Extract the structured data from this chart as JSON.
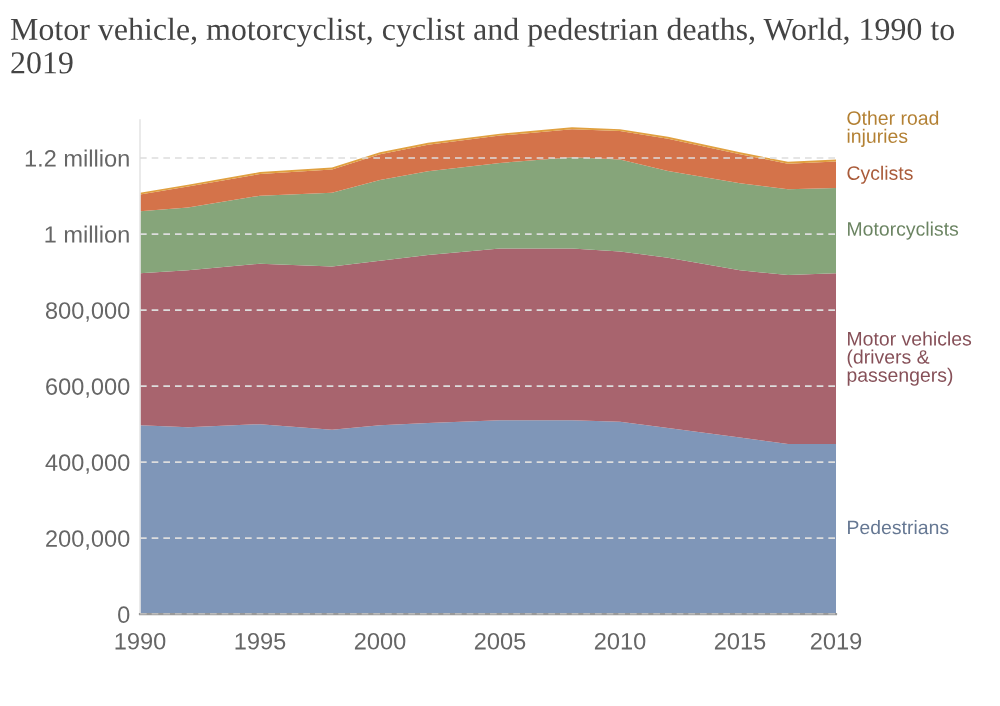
{
  "chart_data": {
    "type": "area",
    "stacked": true,
    "title": "Motor vehicle, motorcyclist, cyclist and pedestrian deaths, World, 1990 to 2019",
    "x": [
      1990,
      1992,
      1995,
      1998,
      2000,
      2002,
      2005,
      2008,
      2010,
      2012,
      2015,
      2017,
      2019
    ],
    "series": [
      {
        "name": "Pedestrians",
        "color": "#7f96b8",
        "values": [
          497000,
          492000,
          500000,
          485000,
          497000,
          503000,
          510000,
          510000,
          506000,
          490000,
          465000,
          448000,
          448000
        ]
      },
      {
        "name": "Motor vehicles (drivers & passengers)",
        "color": "#a8646e",
        "values": [
          400000,
          413000,
          422000,
          430000,
          433000,
          442000,
          452000,
          452000,
          448000,
          448000,
          440000,
          444000,
          449000
        ]
      },
      {
        "name": "Motorcyclists",
        "color": "#86a57a",
        "values": [
          163000,
          165000,
          179000,
          194000,
          212000,
          220000,
          225000,
          240000,
          242000,
          228000,
          229000,
          226000,
          224000
        ]
      },
      {
        "name": "Cyclists",
        "color": "#d4734a",
        "values": [
          44000,
          55000,
          57000,
          61000,
          68000,
          70000,
          72000,
          74000,
          75000,
          85000,
          76000,
          67000,
          70000
        ]
      },
      {
        "name": "Other road injuries",
        "color": "#e0a040",
        "values": [
          5000,
          5000,
          5000,
          5000,
          5000,
          5000,
          5000,
          5000,
          5000,
          5000,
          5000,
          5000,
          5000
        ]
      }
    ],
    "xlim": [
      1990,
      2019
    ],
    "xticks": [
      1990,
      1995,
      2000,
      2005,
      2010,
      2015,
      2019
    ],
    "ylim": [
      0,
      1300000
    ],
    "yticks": [
      0,
      {
        "value": 200000,
        "label": "200,000"
      },
      {
        "value": 400000,
        "label": "400,000"
      },
      {
        "value": 600000,
        "label": "600,000"
      },
      {
        "value": 800000,
        "label": "800,000"
      },
      {
        "value": 1000000,
        "label": "1 million"
      },
      {
        "value": 1200000,
        "label": "1.2 million"
      }
    ],
    "grid": "y",
    "legend": false
  }
}
